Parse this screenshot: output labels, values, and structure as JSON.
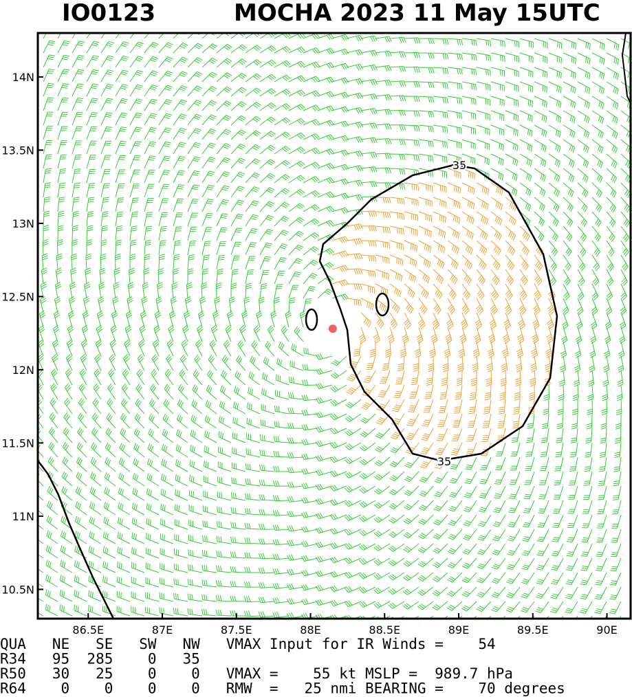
{
  "header": {
    "id": "IO0123",
    "title": "MOCHA 2023 11 May 15UTC"
  },
  "map": {
    "lonlim": [
      86.16,
      90.16
    ],
    "latlim": [
      10.3,
      14.3
    ],
    "lon_ticks": [
      {
        "value": 86.5,
        "label": "86.5E"
      },
      {
        "value": 87,
        "label": "87E"
      },
      {
        "value": 87.5,
        "label": "87.5E"
      },
      {
        "value": 88,
        "label": "88E"
      },
      {
        "value": 88.5,
        "label": "88.5E"
      },
      {
        "value": 89,
        "label": "89E"
      },
      {
        "value": 89.5,
        "label": "89.5E"
      },
      {
        "value": 90,
        "label": "90E"
      }
    ],
    "lat_ticks": [
      {
        "value": 10.5,
        "label": "10.5N"
      },
      {
        "value": 11,
        "label": "11N"
      },
      {
        "value": 11.5,
        "label": "11.5N"
      },
      {
        "value": 12,
        "label": "12N"
      },
      {
        "value": 12.5,
        "label": "12.5N"
      },
      {
        "value": 13,
        "label": "13N"
      },
      {
        "value": 13.5,
        "label": "13.5N"
      },
      {
        "value": 14,
        "label": "14N"
      }
    ],
    "contour_label": "35",
    "center": {
      "lon": 88.15,
      "lat": 12.28
    }
  },
  "footer": {
    "lines": [
      "QUA   NE   SE   SW   NW   VMAX Input for IR Winds =    54",
      "R34   95  285    0   35",
      "R50   30   25    0    0   VMAX =    55 kt MSLP =  989.7 hPa",
      "R64    0    0    0    0   RMW  =   25 nmi BEARING =    70 degrees"
    ]
  }
}
